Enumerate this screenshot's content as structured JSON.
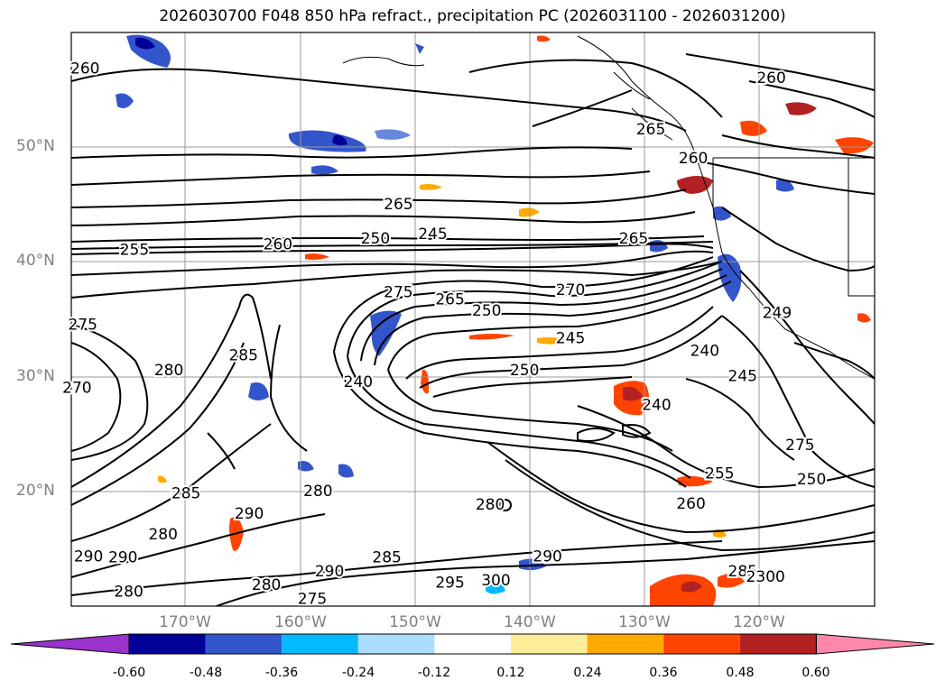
{
  "title": "2026030700 F048 850 hPa refract., precipitation PC (2026031100 - 2026031200)",
  "latitude_labels": [
    "50°N",
    "40°N",
    "30°N",
    "20°N"
  ],
  "longitude_labels": [
    "170°W",
    "160°W",
    "150°W",
    "140°W",
    "130°W",
    "120°W"
  ],
  "contour_labels": [
    {
      "text": "260",
      "lon": -178.8,
      "lat": 56.8
    },
    {
      "text": "265",
      "lon": -151.5,
      "lat": 45.0
    },
    {
      "text": "255",
      "lon": -174.5,
      "lat": 41.0
    },
    {
      "text": "260",
      "lon": -162.0,
      "lat": 41.5
    },
    {
      "text": "250",
      "lon": -153.5,
      "lat": 42.0
    },
    {
      "text": "245",
      "lon": -148.5,
      "lat": 42.4
    },
    {
      "text": "275",
      "lon": -151.5,
      "lat": 37.3
    },
    {
      "text": "265",
      "lon": -147.0,
      "lat": 36.7
    },
    {
      "text": "250",
      "lon": -143.8,
      "lat": 35.7
    },
    {
      "text": "270",
      "lon": -136.5,
      "lat": 37.5
    },
    {
      "text": "265",
      "lon": -131.0,
      "lat": 42.0
    },
    {
      "text": "245",
      "lon": -136.5,
      "lat": 33.3
    },
    {
      "text": "250",
      "lon": -140.5,
      "lat": 30.5
    },
    {
      "text": "240",
      "lon": -155.0,
      "lat": 29.5
    },
    {
      "text": "240",
      "lon": -129.0,
      "lat": 27.5
    },
    {
      "text": "240",
      "lon": -124.8,
      "lat": 32.2
    },
    {
      "text": "245",
      "lon": -121.5,
      "lat": 30.0
    },
    {
      "text": "280",
      "lon": -171.5,
      "lat": 30.5
    },
    {
      "text": "285",
      "lon": -165.0,
      "lat": 31.8
    },
    {
      "text": "285",
      "lon": -170.0,
      "lat": 19.8
    },
    {
      "text": "290",
      "lon": -164.5,
      "lat": 18.0
    },
    {
      "text": "280",
      "lon": -158.5,
      "lat": 20.0
    },
    {
      "text": "280",
      "lon": -143.5,
      "lat": 18.8
    },
    {
      "text": "260",
      "lon": -126.0,
      "lat": 18.9
    },
    {
      "text": "255",
      "lon": -123.5,
      "lat": 21.5
    },
    {
      "text": "280",
      "lon": -172.0,
      "lat": 16.2
    },
    {
      "text": "290",
      "lon": -178.5,
      "lat": 14.3
    },
    {
      "text": "290",
      "lon": -175.5,
      "lat": 14.2
    },
    {
      "text": "280",
      "lon": -175.0,
      "lat": 11.2
    },
    {
      "text": "280",
      "lon": -163.0,
      "lat": 11.8
    },
    {
      "text": "275",
      "lon": -159.0,
      "lat": 10.6
    },
    {
      "text": "290",
      "lon": -157.5,
      "lat": 13.0
    },
    {
      "text": "285",
      "lon": -152.5,
      "lat": 14.2
    },
    {
      "text": "295",
      "lon": -147.0,
      "lat": 12.0
    },
    {
      "text": "300",
      "lon": -143.0,
      "lat": 12.2
    },
    {
      "text": "290",
      "lon": -138.5,
      "lat": 14.3
    },
    {
      "text": "285",
      "lon": -121.5,
      "lat": 13.0
    },
    {
      "text": "2300",
      "lon": -119.5,
      "lat": 12.5
    },
    {
      "text": "275",
      "lon": -179.0,
      "lat": 34.5
    },
    {
      "text": "270",
      "lon": -179.5,
      "lat": 29.0
    },
    {
      "text": "260",
      "lon": -125.8,
      "lat": 49.0
    },
    {
      "text": "260",
      "lon": -119.0,
      "lat": 56.0
    },
    {
      "text": "265",
      "lon": -129.5,
      "lat": 51.5
    },
    {
      "text": "249",
      "lon": -118.5,
      "lat": 35.5
    },
    {
      "text": "275",
      "lon": -116.5,
      "lat": 24.0
    },
    {
      "text": "250",
      "lon": -115.5,
      "lat": 21.0
    }
  ],
  "colorbar": {
    "ticks": [
      "-0.60",
      "-0.48",
      "-0.36",
      "-0.24",
      "-0.12",
      "0.12",
      "0.24",
      "0.36",
      "0.48",
      "0.60"
    ],
    "colors": [
      "#9933cc",
      "#000099",
      "#3355cc",
      "#00bbff",
      "#aaddff",
      "#ffffff",
      "#ffee99",
      "#ffaa00",
      "#ff4400",
      "#b22222",
      "#ff88aa"
    ]
  }
}
